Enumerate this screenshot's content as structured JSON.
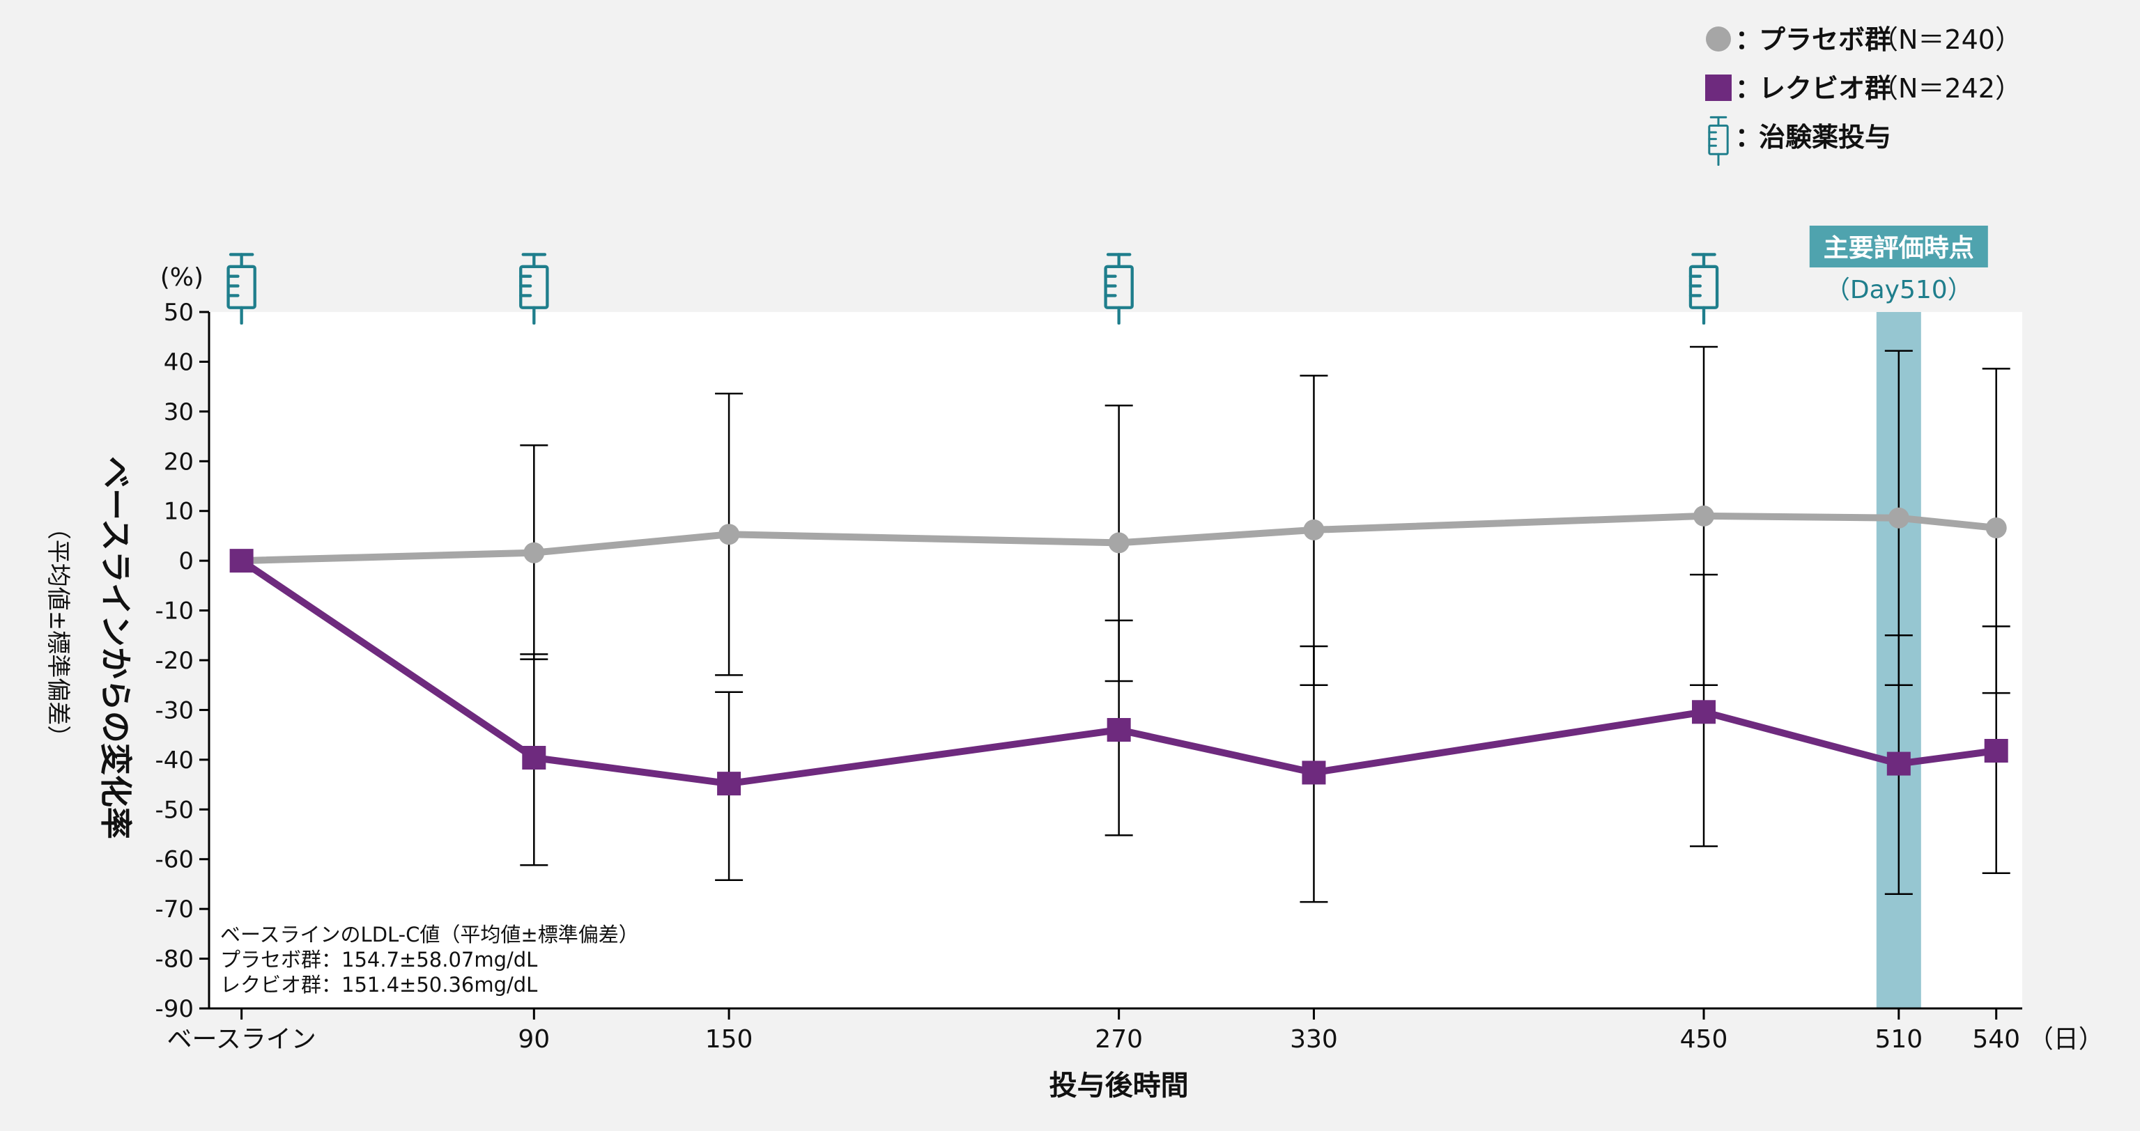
{
  "chart_data": {
    "type": "line",
    "unit_label": "(%)",
    "ylabel": "ベースラインからの変化率",
    "ylabel_sub": "（平均値±標準偏差）",
    "xlabel": "投与後時間",
    "x_unit": "（日）",
    "ylim": [
      -90,
      50
    ],
    "yticks": [
      50,
      40,
      30,
      20,
      10,
      0,
      -10,
      -20,
      -30,
      -40,
      -50,
      -60,
      -70,
      -80,
      -90
    ],
    "ytick_labels": [
      "50",
      "40",
      "30",
      "20",
      "10",
      "0",
      "-10",
      "-20",
      "-30",
      "-40",
      "-50",
      "-60",
      "-70",
      "-80",
      "-90"
    ],
    "x": [
      0,
      90,
      150,
      270,
      330,
      450,
      510,
      540
    ],
    "xtick_labels": [
      "ベースライン",
      "90",
      "150",
      "270",
      "330",
      "450",
      "510",
      "540"
    ],
    "series": [
      {
        "name": "プラセボ群",
        "legend_n": "（N＝240）",
        "color": "#a6a6a6",
        "marker": "circle",
        "values": [
          0,
          1.6,
          5.3,
          3.6,
          6.2,
          9.0,
          8.6,
          6.6
        ],
        "upper": [
          null,
          23.2,
          33.6,
          31.2,
          37.2,
          43.0,
          42.2,
          38.6
        ],
        "lower": [
          null,
          -19.8,
          -23.0,
          -24.2,
          -25.0,
          -25.0,
          -25.0,
          -26.6
        ]
      },
      {
        "name": "レクビオ群",
        "legend_n": "（N＝242）",
        "color": "#6e2a7e",
        "marker": "square",
        "values": [
          0,
          -39.6,
          -44.8,
          -34.0,
          -42.6,
          -30.4,
          -40.8,
          -38.2
        ],
        "upper": [
          null,
          -18.8,
          -26.4,
          -12.0,
          -17.2,
          -2.8,
          -15.0,
          -13.2
        ],
        "lower": [
          null,
          -61.2,
          -64.2,
          -55.2,
          -68.6,
          -57.4,
          -67.0,
          -62.8
        ]
      }
    ],
    "dosing_days": [
      0,
      90,
      270,
      450
    ],
    "dosing_legend": "治験薬投与",
    "dosing_color": "#1f7e8c",
    "primary_endpoint": {
      "day": 510,
      "label": "主要評価時点",
      "sublabel": "（Day510）",
      "band_color": "#96c6d1",
      "label_bg": "#4fa3ae"
    },
    "baseline_note": {
      "title": "ベースラインのLDL-C値（平均値±標準偏差）",
      "lines": [
        "プラセボ群：154.7±58.07mg/dL",
        "レクビオ群：151.4±50.36mg/dL"
      ]
    },
    "legend_position": "top-right",
    "grid": false
  }
}
